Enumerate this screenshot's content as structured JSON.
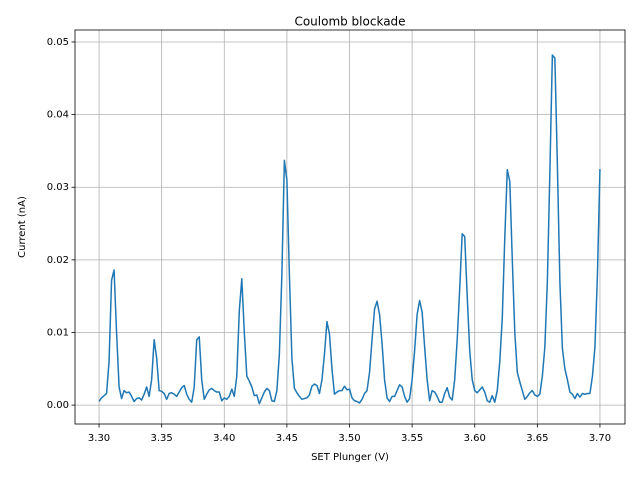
{
  "chart_data": {
    "type": "line",
    "title": "Coulomb blockade",
    "x_label": "SET Plunger  (V)",
    "y_label": "Current (nA)",
    "x": [
      3.3,
      3.302,
      3.304,
      3.306,
      3.308,
      3.31,
      3.312,
      3.314,
      3.316,
      3.318,
      3.32,
      3.322,
      3.324,
      3.326,
      3.328,
      3.33,
      3.332,
      3.334,
      3.336,
      3.338,
      3.34,
      3.342,
      3.344,
      3.346,
      3.348,
      3.35,
      3.352,
      3.354,
      3.356,
      3.358,
      3.36,
      3.362,
      3.364,
      3.366,
      3.368,
      3.37,
      3.372,
      3.374,
      3.376,
      3.378,
      3.38,
      3.382,
      3.384,
      3.386,
      3.388,
      3.39,
      3.392,
      3.394,
      3.396,
      3.398,
      3.4,
      3.402,
      3.404,
      3.406,
      3.408,
      3.41,
      3.412,
      3.414,
      3.416,
      3.418,
      3.42,
      3.422,
      3.424,
      3.426,
      3.428,
      3.43,
      3.432,
      3.434,
      3.436,
      3.438,
      3.44,
      3.442,
      3.444,
      3.446,
      3.448,
      3.45,
      3.452,
      3.454,
      3.456,
      3.458,
      3.46,
      3.462,
      3.464,
      3.466,
      3.468,
      3.47,
      3.472,
      3.474,
      3.476,
      3.478,
      3.48,
      3.482,
      3.484,
      3.486,
      3.488,
      3.49,
      3.492,
      3.494,
      3.496,
      3.498,
      3.5,
      3.502,
      3.504,
      3.506,
      3.508,
      3.51,
      3.512,
      3.514,
      3.516,
      3.518,
      3.52,
      3.522,
      3.524,
      3.526,
      3.528,
      3.53,
      3.532,
      3.534,
      3.536,
      3.538,
      3.54,
      3.542,
      3.544,
      3.546,
      3.548,
      3.55,
      3.552,
      3.554,
      3.556,
      3.558,
      3.56,
      3.562,
      3.564,
      3.566,
      3.568,
      3.57,
      3.572,
      3.574,
      3.576,
      3.578,
      3.58,
      3.582,
      3.584,
      3.586,
      3.588,
      3.59,
      3.592,
      3.594,
      3.596,
      3.598,
      3.6,
      3.602,
      3.604,
      3.606,
      3.608,
      3.61,
      3.612,
      3.614,
      3.616,
      3.618,
      3.62,
      3.622,
      3.624,
      3.626,
      3.628,
      3.63,
      3.632,
      3.634,
      3.636,
      3.638,
      3.64,
      3.642,
      3.644,
      3.646,
      3.648,
      3.65,
      3.652,
      3.654,
      3.656,
      3.658,
      3.66,
      3.662,
      3.664,
      3.666,
      3.668,
      3.67,
      3.672,
      3.674,
      3.676,
      3.678,
      3.68,
      3.682,
      3.684,
      3.686,
      3.688,
      3.69,
      3.692,
      3.694,
      3.696,
      3.698,
      3.7
    ],
    "series": [
      {
        "color": "#1f77b4",
        "values": [
          0.0005,
          0.001,
          0.0013,
          0.0016,
          0.006,
          0.0172,
          0.0186,
          0.01,
          0.0025,
          0.0009,
          0.002,
          0.0017,
          0.0018,
          0.0012,
          0.0005,
          0.0009,
          0.001,
          0.0007,
          0.0015,
          0.0025,
          0.0012,
          0.0035,
          0.009,
          0.0065,
          0.002,
          0.0019,
          0.0016,
          0.0008,
          0.0016,
          0.0017,
          0.0015,
          0.0012,
          0.0018,
          0.0024,
          0.0027,
          0.0015,
          0.0008,
          0.0004,
          0.0025,
          0.009,
          0.0094,
          0.0035,
          0.0008,
          0.0015,
          0.0021,
          0.0023,
          0.002,
          0.0018,
          0.0018,
          0.0006,
          0.001,
          0.0008,
          0.0012,
          0.0022,
          0.0012,
          0.004,
          0.013,
          0.0174,
          0.01,
          0.004,
          0.0033,
          0.0025,
          0.0013,
          0.0014,
          0.0002,
          0.001,
          0.0018,
          0.0023,
          0.002,
          0.0006,
          0.0005,
          0.002,
          0.007,
          0.018,
          0.0337,
          0.031,
          0.018,
          0.0065,
          0.0023,
          0.0017,
          0.0012,
          0.0008,
          0.0009,
          0.001,
          0.0014,
          0.0026,
          0.0029,
          0.0027,
          0.0016,
          0.0035,
          0.007,
          0.0115,
          0.0098,
          0.005,
          0.0015,
          0.0018,
          0.002,
          0.002,
          0.0026,
          0.0021,
          0.0022,
          0.001,
          0.0006,
          0.0005,
          0.0003,
          0.0008,
          0.0016,
          0.002,
          0.0045,
          0.009,
          0.0132,
          0.0143,
          0.0125,
          0.0085,
          0.0035,
          0.001,
          0.0005,
          0.0012,
          0.0012,
          0.002,
          0.0028,
          0.0025,
          0.0012,
          0.0004,
          0.0009,
          0.0035,
          0.0075,
          0.0125,
          0.0144,
          0.0128,
          0.008,
          0.0035,
          0.0006,
          0.002,
          0.0018,
          0.0012,
          0.0004,
          0.0004,
          0.0016,
          0.0024,
          0.0011,
          0.0007,
          0.0035,
          0.009,
          0.016,
          0.0236,
          0.0232,
          0.015,
          0.0075,
          0.0035,
          0.002,
          0.0017,
          0.0021,
          0.0025,
          0.0018,
          0.0006,
          0.0004,
          0.0013,
          0.0004,
          0.002,
          0.006,
          0.012,
          0.023,
          0.0324,
          0.0308,
          0.02,
          0.01,
          0.0045,
          0.0032,
          0.002,
          0.0008,
          0.0012,
          0.0017,
          0.002,
          0.0014,
          0.0012,
          0.0015,
          0.004,
          0.008,
          0.017,
          0.032,
          0.0482,
          0.0478,
          0.033,
          0.017,
          0.0078,
          0.005,
          0.0035,
          0.0018,
          0.0015,
          0.0009,
          0.0016,
          0.0011,
          0.0016,
          0.0015,
          0.0016,
          0.0016,
          0.004,
          0.008,
          0.018,
          0.0325
        ]
      }
    ],
    "xlim": [
      3.2808,
      3.72
    ],
    "ylim": [
      -0.0026,
      0.05165
    ],
    "xticks": [
      {
        "value": 3.3,
        "label": "3.30"
      },
      3.35,
      {
        "value": 3.4,
        "label": "3.40"
      },
      3.45,
      {
        "value": 3.5,
        "label": "3.50"
      },
      3.55,
      {
        "value": 3.6,
        "label": "3.60"
      },
      3.65,
      {
        "value": 3.7,
        "label": "3.70"
      }
    ],
    "yticks": [
      {
        "value": 0,
        "label": "0.00"
      },
      0.01,
      0.02,
      0.03,
      0.04,
      0.05
    ],
    "grid": true
  }
}
